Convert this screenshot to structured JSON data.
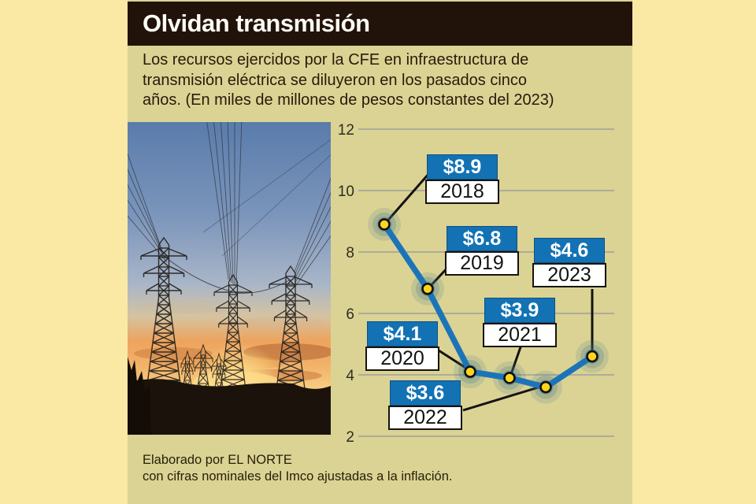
{
  "header": {
    "title": "Olvidan transmisión"
  },
  "intro": {
    "text": "Los recursos ejercidos por la CFE en infraestructura de transmisión eléctrica se diluyeron en los pasados cinco años. (En miles de millones de pesos constantes del 2023)",
    "lines": [
      "Los recursos ejercidos por la CFE en infraestructura de",
      "transmisión eléctrica se diluyeron en los pasados cinco",
      "años. (En miles de millones de pesos constantes del 2023)"
    ]
  },
  "photo": {
    "alt": "Torres de transmisión eléctrica al atardecer"
  },
  "chart_data": {
    "type": "line",
    "title": "Olvidan transmisión",
    "unit": "miles de millones de pesos constantes del 2023",
    "categories": [
      "2018",
      "2019",
      "2020",
      "2021",
      "2022",
      "2023"
    ],
    "values": [
      8.9,
      6.8,
      4.1,
      3.9,
      3.6,
      4.6
    ],
    "point_labels": [
      "$8.9",
      "$6.8",
      "$4.1",
      "$3.9",
      "$3.6",
      "$4.6"
    ],
    "y_ticks": [
      12,
      10,
      8,
      6,
      4,
      2
    ],
    "ylim": [
      2,
      12
    ],
    "grid": true,
    "legend": "none",
    "colors": {
      "line": "#1c74b8",
      "label_box": "#1272b4",
      "point": "#ffd41e",
      "point_stroke": "#101010",
      "glow": "#41758a",
      "gridline": "#adab9b",
      "callout": "#141311",
      "panel_bg": "#dbd394",
      "page_bg": "#f9e9a4",
      "header_bg": "#211309"
    }
  },
  "footer": {
    "line1": "Elaborado por EL NORTE",
    "line2": "con cifras nominales del Imco ajustadas a la inflación."
  }
}
